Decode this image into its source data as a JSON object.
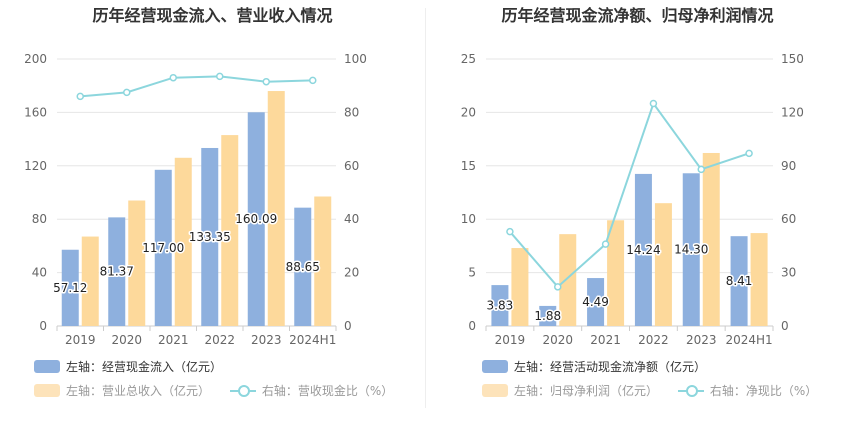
{
  "chart_data": [
    {
      "type": "bar",
      "title": "历年经营现金流入、营业收入情况",
      "categories": [
        "2019",
        "2020",
        "2021",
        "2022",
        "2023",
        "2024H1"
      ],
      "left_axis": {
        "ylim": [
          0,
          200
        ],
        "ticks": [
          "0",
          "40",
          "80",
          "120",
          "160",
          "200"
        ]
      },
      "right_axis": {
        "ylim": [
          0,
          100
        ],
        "ticks": [
          "0",
          "20",
          "40",
          "60",
          "80",
          "100"
        ]
      },
      "series": [
        {
          "name": "左轴：经营现金流入（亿元）",
          "axis": "left",
          "type": "bar",
          "color": "#8eb0de",
          "values": [
            57.12,
            81.37,
            117.0,
            133.35,
            160.09,
            88.65
          ],
          "labels": [
            "57.12",
            "81.37",
            "117.00",
            "133.35",
            "160.09",
            "88.65"
          ]
        },
        {
          "name": "左轴：营业总收入（亿元）",
          "axis": "left",
          "type": "bar",
          "color": "#fdd99b",
          "values": [
            67,
            94,
            126,
            143,
            176,
            97
          ]
        },
        {
          "name": "右轴：营收现金比（%）",
          "axis": "right",
          "type": "line",
          "color": "#8cd6dd",
          "values": [
            86,
            87.5,
            93,
            93.5,
            91.5,
            92
          ]
        }
      ]
    },
    {
      "type": "bar",
      "title": "历年经营现金流净额、归母净利润情况",
      "categories": [
        "2019",
        "2020",
        "2021",
        "2022",
        "2023",
        "2024H1"
      ],
      "left_axis": {
        "ylim": [
          0,
          25
        ],
        "ticks": [
          "0",
          "5",
          "10",
          "15",
          "20",
          "25"
        ]
      },
      "right_axis": {
        "ylim": [
          0,
          150
        ],
        "ticks": [
          "0",
          "30",
          "60",
          "90",
          "120",
          "150"
        ]
      },
      "series": [
        {
          "name": "左轴：经营活动现金流净额（亿元）",
          "axis": "left",
          "type": "bar",
          "color": "#8eb0de",
          "values": [
            3.83,
            1.88,
            4.49,
            14.24,
            14.3,
            8.41
          ],
          "labels": [
            "3.83",
            "1.88",
            "4.49",
            "14.24",
            "14.30",
            "8.41"
          ]
        },
        {
          "name": "左轴：归母净利润（亿元）",
          "axis": "left",
          "type": "bar",
          "color": "#fdd99b",
          "values": [
            7.3,
            8.6,
            9.9,
            11.5,
            16.2,
            8.7
          ]
        },
        {
          "name": "右轴：净现比（%）",
          "axis": "right",
          "type": "line",
          "color": "#8cd6dd",
          "values": [
            53,
            22,
            46,
            125,
            88,
            97
          ]
        }
      ]
    }
  ]
}
